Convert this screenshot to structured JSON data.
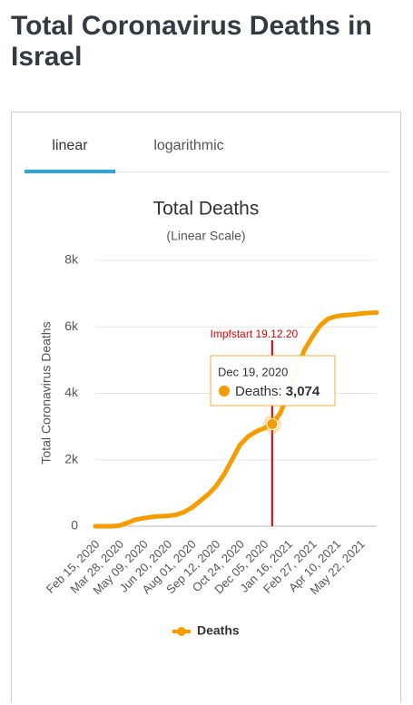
{
  "header": {
    "title": "Total Coronavirus Deaths in Israel"
  },
  "tabs": [
    "linear",
    "logarithmic"
  ],
  "chart_data": {
    "type": "line",
    "title": "Total Deaths",
    "subtitle": "(Linear Scale)",
    "y_label": "Total Coronavirus Deaths",
    "categories": [
      "Feb 15, 2020",
      null,
      null,
      "Mar 28, 2020",
      null,
      null,
      "May 09, 2020",
      null,
      null,
      "Jun 20, 2020",
      null,
      null,
      "Aug 01, 2020",
      null,
      null,
      "Sep 12, 2020",
      null,
      null,
      "Oct 24, 2020",
      null,
      null,
      "Dec 05, 2020",
      null,
      null,
      "Jan 16, 2021",
      null,
      null,
      "Feb 27, 2021",
      null,
      null,
      "Apr 10, 2021",
      null,
      null,
      "May 22, 2021",
      null,
      null
    ],
    "series": [
      {
        "name": "Deaths",
        "color": "#f59c00",
        "values": [
          0,
          0,
          0,
          20,
          100,
          200,
          240,
          280,
          300,
          310,
          340,
          420,
          560,
          750,
          950,
          1200,
          1550,
          2000,
          2450,
          2700,
          2850,
          2950,
          3074,
          3400,
          4000,
          4700,
          5300,
          5700,
          6050,
          6250,
          6320,
          6350,
          6370,
          6400,
          6420,
          6430
        ]
      }
    ],
    "ylim": [
      0,
      8000
    ],
    "yticks": [
      0,
      {
        "value": 2000,
        "label": "2k"
      },
      {
        "value": 4000,
        "label": "4k"
      },
      {
        "value": 6000,
        "label": "6k"
      },
      {
        "value": 8000,
        "label": "8k"
      }
    ],
    "grid": true,
    "annotation": {
      "text": "Impfstart 19.12.20",
      "color": "#e00000"
    },
    "tooltip": {
      "x_label": "Dec 19, 2020",
      "series_label": "Deaths:",
      "value": 3074,
      "value_label": "3,074"
    }
  }
}
